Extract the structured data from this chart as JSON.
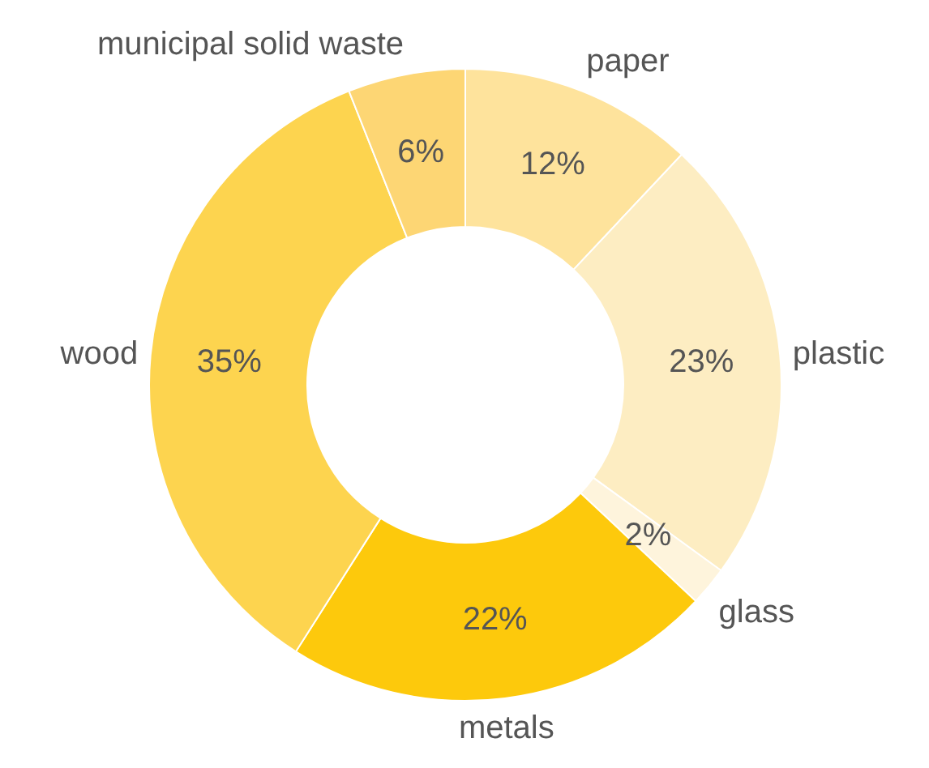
{
  "chart_data": {
    "type": "donut",
    "categories": [
      "paper",
      "plastic",
      "glass",
      "metals",
      "wood",
      "municipal solid waste"
    ],
    "values": [
      12,
      23,
      2,
      22,
      35,
      6
    ],
    "colors": [
      "#fee39c",
      "#fdedc2",
      "#fef4dc",
      "#fdc90c",
      "#fdd44f",
      "#fdd674"
    ],
    "value_labels": [
      "12%",
      "23%",
      "2%",
      "22%",
      "35%",
      "6%"
    ]
  }
}
